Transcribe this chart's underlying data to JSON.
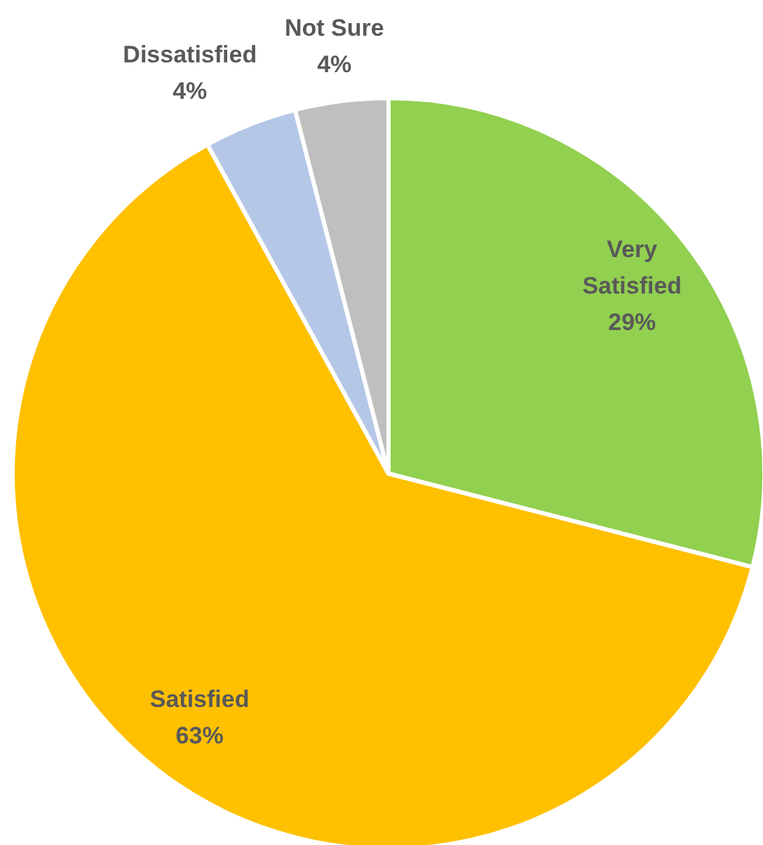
{
  "chart_data": {
    "type": "pie",
    "categories": [
      "Very Satisfied",
      "Satisfied",
      "Dissatisfied",
      "Not Sure"
    ],
    "values": [
      29,
      63,
      4,
      4
    ],
    "colors": [
      "#92d050",
      "#ffc000",
      "#b4c7e7",
      "#bfbfbf"
    ],
    "value_labels": [
      "29%",
      "63%",
      "4%",
      "4%"
    ]
  }
}
